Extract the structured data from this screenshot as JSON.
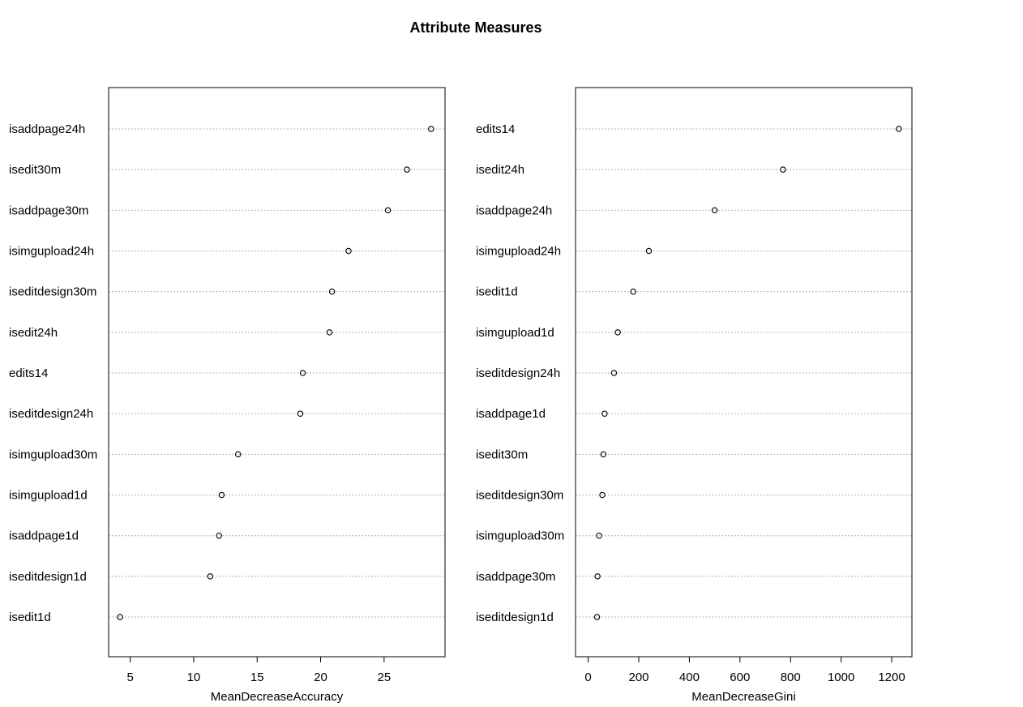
{
  "title": "Attribute Measures",
  "chart_data": [
    {
      "type": "scatter",
      "subtype": "dotchart",
      "xlabel": "MeanDecreaseAccuracy",
      "xlim": [
        3.3,
        29.8
      ],
      "xticks": [
        5,
        10,
        15,
        20,
        25
      ],
      "grid": "horizontal dotted guide lines",
      "categories": [
        "isaddpage24h",
        "isedit30m",
        "isaddpage30m",
        "isimgupload24h",
        "iseditdesign30m",
        "isedit24h",
        "edits14",
        "iseditdesign24h",
        "isimgupload30m",
        "isimgupload1d",
        "isaddpage1d",
        "iseditdesign1d",
        "isedit1d"
      ],
      "values": [
        28.7,
        26.8,
        25.3,
        22.2,
        20.9,
        20.7,
        18.6,
        18.4,
        13.5,
        12.2,
        12.0,
        11.3,
        4.2
      ]
    },
    {
      "type": "scatter",
      "subtype": "dotchart",
      "xlabel": "MeanDecreaseGini",
      "xlim": [
        -50,
        1280
      ],
      "xticks": [
        0,
        200,
        400,
        600,
        800,
        1000,
        1200
      ],
      "grid": "horizontal dotted guide lines",
      "categories": [
        "edits14",
        "isedit24h",
        "isaddpage24h",
        "isimgupload24h",
        "isedit1d",
        "isimgupload1d",
        "iseditdesign24h",
        "isaddpage1d",
        "isedit30m",
        "iseditdesign30m",
        "isimgupload30m",
        "isaddpage30m",
        "iseditdesign1d"
      ],
      "values": [
        1228,
        770,
        500,
        240,
        178,
        117,
        102,
        65,
        60,
        56,
        43,
        37,
        35
      ]
    }
  ]
}
